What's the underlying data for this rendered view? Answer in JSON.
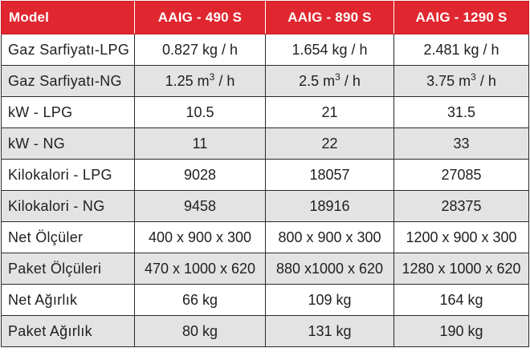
{
  "table": {
    "headers": [
      "Model",
      "AAIG - 490 S",
      "AAIG - 890 S",
      "AAIG - 1290 S"
    ],
    "rows": [
      {
        "label": "Gaz Sarfiyatı-LPG",
        "values": [
          "0.827 kg / h",
          "1.654 kg / h",
          "2.481 kg / h"
        ]
      },
      {
        "label": "Gaz Sarfiyatı-NG",
        "values": [
          {
            "pre": "1.25 m",
            "sup": "3",
            "post": " / h"
          },
          {
            "pre": "2.5 m",
            "sup": "3",
            "post": " / h"
          },
          {
            "pre": "3.75 m",
            "sup": "3",
            "post": " / h"
          }
        ]
      },
      {
        "label": "kW - LPG",
        "values": [
          "10.5",
          "21",
          "31.5"
        ]
      },
      {
        "label": "kW - NG",
        "values": [
          "11",
          "22",
          "33"
        ]
      },
      {
        "label": "Kilokalori - LPG",
        "values": [
          "9028",
          "18057",
          "27085"
        ]
      },
      {
        "label": "Kilokalori - NG",
        "values": [
          "9458",
          "18916",
          "28375"
        ]
      },
      {
        "label": "Net Ölçüler",
        "values": [
          "400 x 900 x 300",
          "800 x 900 x 300",
          "1200 x 900 x 300"
        ]
      },
      {
        "label": "Paket Ölçüleri",
        "values": [
          "470 x 1000 x 620",
          "880 x1000 x 620",
          "1280 x 1000 x 620"
        ]
      },
      {
        "label": "Net Ağırlık",
        "values": [
          "66 kg",
          "109 kg",
          "164 kg"
        ]
      },
      {
        "label": "Paket Ağırlık",
        "values": [
          "80 kg",
          "131 kg",
          "190 kg"
        ]
      }
    ]
  },
  "colors": {
    "header_bg": "#e0262f",
    "header_text": "#ffffff",
    "row_alt_bg": "#e3e3e3",
    "row_bg": "#ffffff",
    "text": "#1f1f1f"
  }
}
